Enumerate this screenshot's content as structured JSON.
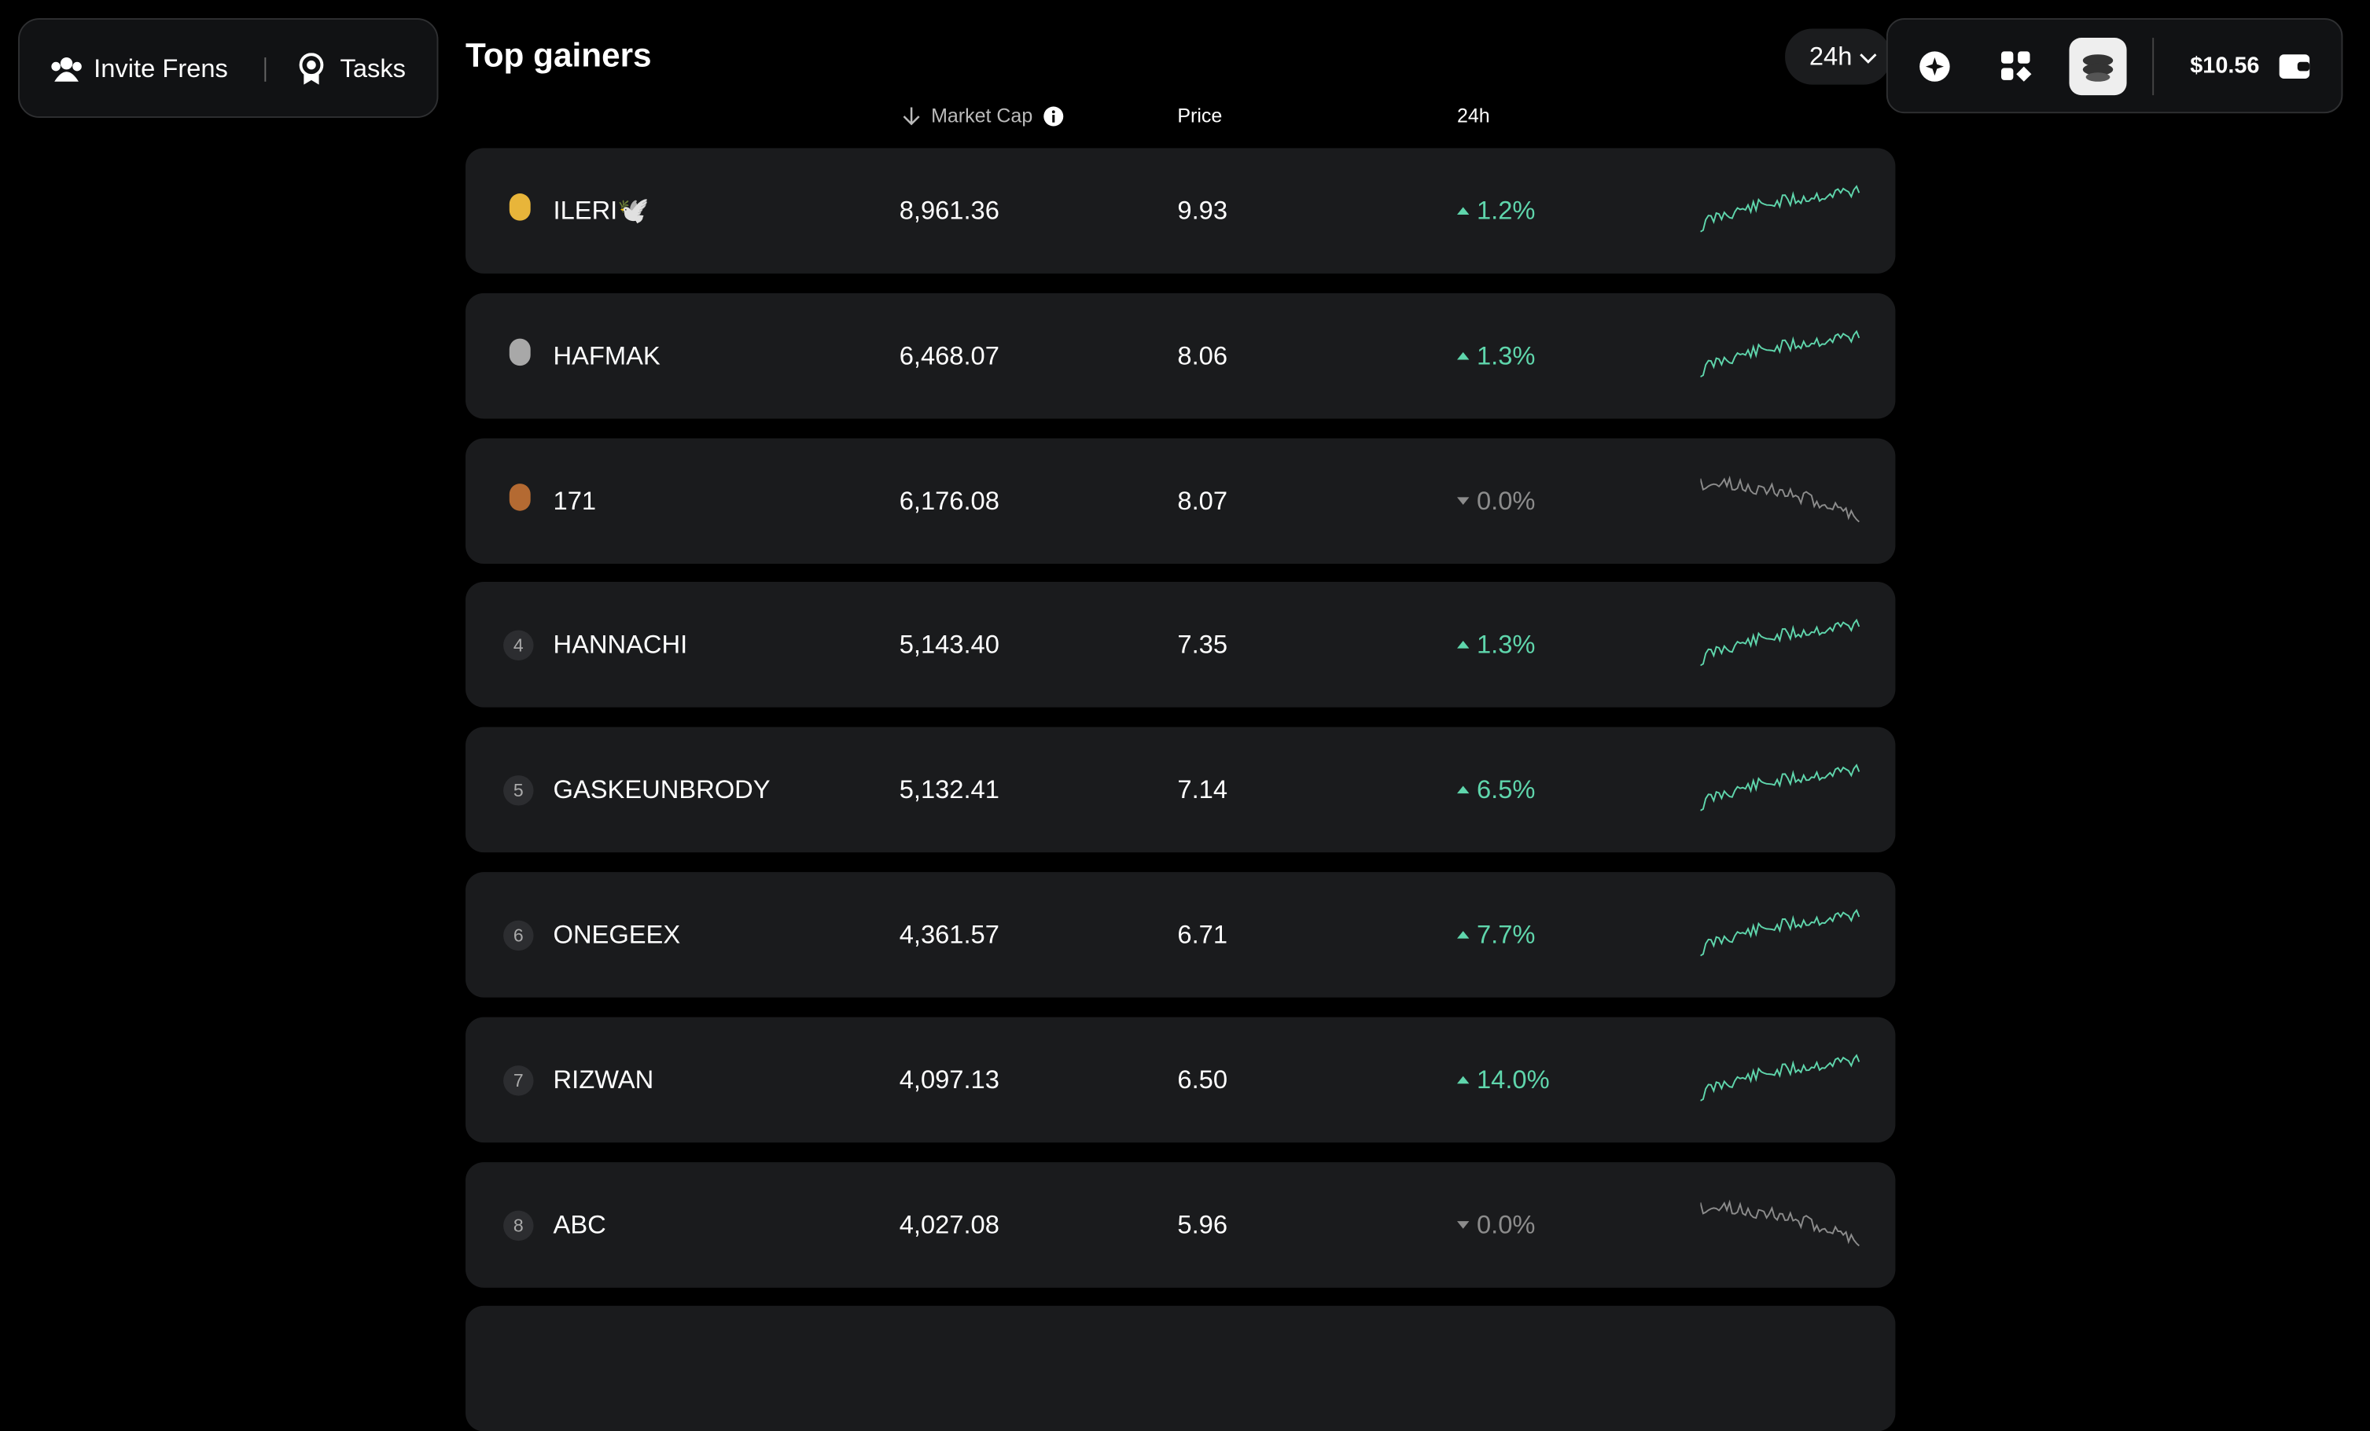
{
  "nav": {
    "invite": "Invite Frens",
    "tasks": "Tasks"
  },
  "title": "Top gainers",
  "period": "24h",
  "balance": "$10.56",
  "columns": {
    "market_cap": "Market Cap",
    "price": "Price",
    "change": "24h"
  },
  "rows": [
    {
      "name": "ILERI🕊️",
      "market_cap": "8,961.36",
      "price": "9.93",
      "change": "1.2%",
      "trend": "up",
      "color": "#5fd6ac"
    },
    {
      "name": "HAFMAK",
      "market_cap": "6,468.07",
      "price": "8.06",
      "change": "1.3%",
      "trend": "up",
      "color": "#5fd6ac"
    },
    {
      "name": "171",
      "market_cap": "6,176.08",
      "price": "8.07",
      "change": "0.0%",
      "trend": "down",
      "color": "#8c8c8c"
    },
    {
      "rank": "4",
      "name": "HANNACHI",
      "market_cap": "5,143.40",
      "price": "7.35",
      "change": "1.3%",
      "trend": "up",
      "color": "#5fd6ac"
    },
    {
      "rank": "5",
      "name": "GASKEUNBRODY",
      "market_cap": "5,132.41",
      "price": "7.14",
      "change": "6.5%",
      "trend": "up",
      "color": "#5fd6ac"
    },
    {
      "rank": "6",
      "name": "ONEGEEX",
      "market_cap": "4,361.57",
      "price": "6.71",
      "change": "7.7%",
      "trend": "up",
      "color": "#5fd6ac"
    },
    {
      "rank": "7",
      "name": "RIZWAN",
      "market_cap": "4,097.13",
      "price": "6.50",
      "change": "14.0%",
      "trend": "up",
      "color": "#5fd6ac"
    },
    {
      "rank": "8",
      "name": "ABC",
      "market_cap": "4,027.08",
      "price": "5.96",
      "change": "0.0%",
      "trend": "down",
      "color": "#8c8c8c"
    }
  ]
}
